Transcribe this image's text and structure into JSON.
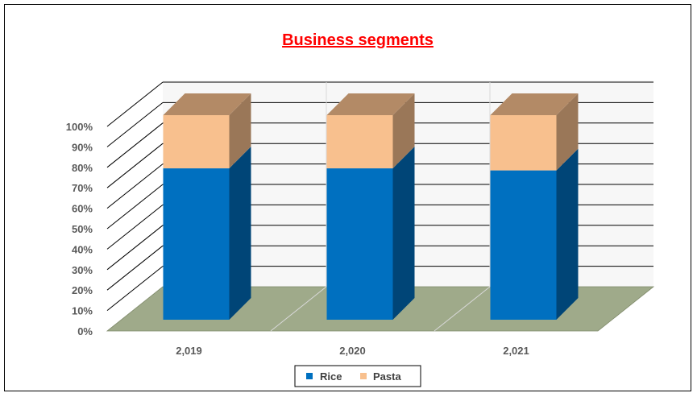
{
  "chart_data": {
    "type": "bar",
    "variant": "3d-stacked-percent-column",
    "title": "Business segments",
    "categories": [
      "2,019",
      "2,020",
      "2,021"
    ],
    "series": [
      {
        "name": "Rice",
        "values": [
          74,
          74,
          73
        ],
        "color": "#0070C0"
      },
      {
        "name": "Pasta",
        "values": [
          26,
          26,
          27
        ],
        "color": "#F8C08E"
      }
    ],
    "yticks": [
      "0%",
      "10%",
      "20%",
      "30%",
      "40%",
      "50%",
      "60%",
      "70%",
      "80%",
      "90%",
      "100%"
    ],
    "ylim": [
      0,
      100
    ],
    "grid": true,
    "legend_position": "bottom",
    "colors": {
      "title": "#FF0000",
      "floor": "#9FAA8A",
      "gridline": "#000000",
      "tick_text": "#595959"
    }
  }
}
